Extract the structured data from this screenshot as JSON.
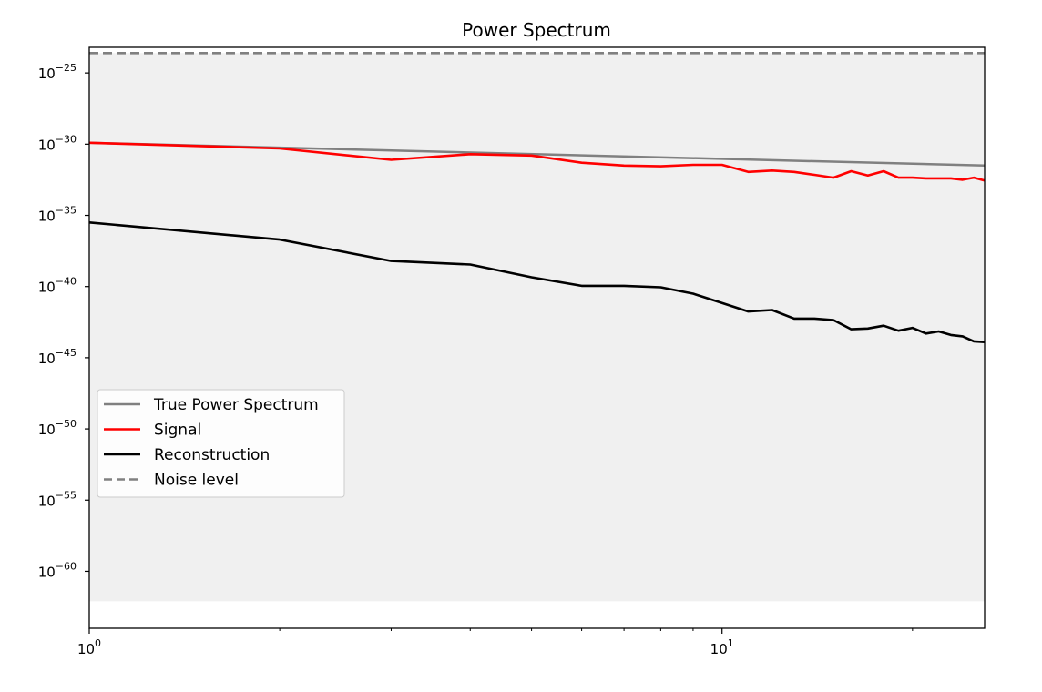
{
  "chart_data": {
    "type": "line",
    "title": "Power Spectrum",
    "xlabel": "",
    "ylabel": "",
    "x_scale": "log",
    "y_scale": "log",
    "xlim": [
      1,
      26
    ],
    "ylim_exponent": [
      -64,
      -23.2
    ],
    "x_ticks": [
      {
        "value": 1,
        "base": "10",
        "exp": "0"
      },
      {
        "value": 10,
        "base": "10",
        "exp": "1"
      }
    ],
    "y_ticks": [
      {
        "exp_value": -25,
        "base": "10",
        "exp": "−25"
      },
      {
        "exp_value": -30,
        "base": "10",
        "exp": "−30"
      },
      {
        "exp_value": -35,
        "base": "10",
        "exp": "−35"
      },
      {
        "exp_value": -40,
        "base": "10",
        "exp": "−40"
      },
      {
        "exp_value": -45,
        "base": "10",
        "exp": "−45"
      },
      {
        "exp_value": -50,
        "base": "10",
        "exp": "−50"
      },
      {
        "exp_value": -55,
        "base": "10",
        "exp": "−55"
      },
      {
        "exp_value": -60,
        "base": "10",
        "exp": "−60"
      }
    ],
    "grid": false,
    "legend_position": "center-left",
    "shaded_band": {
      "x": [
        1,
        26
      ],
      "y_exponent": [
        -62.1,
        -23.6
      ],
      "color": "#f0f0f0"
    },
    "series": [
      {
        "name": "True Power Spectrum",
        "color": "#808080",
        "style": "solid",
        "x": [
          1,
          26
        ],
        "y_exponent": [
          -29.9,
          -31.5
        ]
      },
      {
        "name": "Signal",
        "color": "#ff0000",
        "style": "solid",
        "x": [
          1,
          2,
          3,
          4,
          5,
          6,
          7,
          8,
          9,
          10,
          11,
          12,
          13,
          14,
          15,
          16,
          17,
          18,
          19,
          20,
          21,
          22,
          23,
          24,
          25,
          26
        ],
        "y_exponent": [
          -29.9,
          -30.3,
          -31.1,
          -30.7,
          -30.8,
          -31.3,
          -31.5,
          -31.55,
          -31.45,
          -31.45,
          -31.95,
          -31.85,
          -31.95,
          -32.15,
          -32.35,
          -31.9,
          -32.2,
          -31.9,
          -32.35,
          -32.35,
          -32.4,
          -32.4,
          -32.4,
          -32.5,
          -32.35,
          -32.55
        ]
      },
      {
        "name": "Reconstruction",
        "color": "#000000",
        "style": "solid",
        "x": [
          1,
          2,
          3,
          4,
          5,
          6,
          7,
          8,
          9,
          10,
          11,
          12,
          13,
          14,
          15,
          16,
          17,
          18,
          19,
          20,
          21,
          22,
          23,
          24,
          25,
          26
        ],
        "y_exponent": [
          -35.5,
          -36.7,
          -38.2,
          -38.45,
          -39.35,
          -39.95,
          -39.95,
          -40.05,
          -40.5,
          -41.15,
          -41.75,
          -41.65,
          -42.25,
          -42.25,
          -42.35,
          -43.0,
          -42.95,
          -42.75,
          -43.1,
          -42.9,
          -43.3,
          -43.15,
          -43.4,
          -43.5,
          -43.85,
          -43.9
        ]
      },
      {
        "name": "Noise level",
        "color": "#808080",
        "style": "dashed",
        "x": [
          1,
          26
        ],
        "y_exponent": [
          -23.6,
          -23.6
        ]
      }
    ]
  }
}
